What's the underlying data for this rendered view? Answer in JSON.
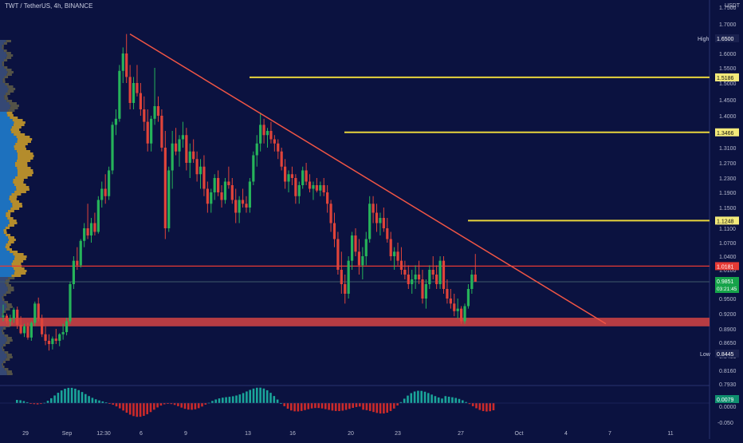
{
  "header": {
    "title": "TWT / TetherUS, 4h, BINANCE",
    "currency": "USDT"
  },
  "colors": {
    "background": "#0b1240",
    "up": "#26b35a",
    "down": "#e0443a",
    "trendline": "#f05545",
    "resistance": "#e8d43c",
    "support_zone": "#d54444",
    "red_line": "#e63a35",
    "price_badge": "#16a34a",
    "axis_text": "#b8bcd0",
    "label_bg": "#f3ea7a"
  },
  "chart_data": {
    "type": "candlestick",
    "y_axis": {
      "range": [
        0.82,
        1.73
      ],
      "ticks": [
        "1.7500",
        "1.7000",
        "1.6500",
        "1.6000",
        "1.5500",
        "1.5000",
        "1.4500",
        "1.4000",
        "1.3500",
        "1.3100",
        "1.2700",
        "1.2300",
        "1.1900",
        "1.1500",
        "1.1100",
        "1.0700",
        "1.0400",
        "1.0100",
        "0.9800",
        "0.9500",
        "0.9200",
        "0.8900",
        "0.8650",
        "0.8400",
        "0.8160",
        "0.7930"
      ],
      "scale": "log"
    },
    "x_axis": {
      "ticks": [
        "29",
        "Sep",
        "12:30",
        "6",
        "9",
        "13",
        "16",
        "20",
        "23",
        "27",
        "Oct",
        "4",
        "7",
        "11"
      ]
    },
    "price_labels": [
      {
        "tag": "High",
        "value": "1.6500"
      },
      {
        "tag": "",
        "value": "1.5186"
      },
      {
        "tag": "",
        "value": "1.3466"
      },
      {
        "tag": "",
        "value": "1.1248"
      },
      {
        "tag": "",
        "value": "1.0181"
      },
      {
        "tag": "",
        "value": "0.9851"
      },
      {
        "tag": "",
        "value": "03:21:45"
      },
      {
        "tag": "Low",
        "value": "0.8445"
      }
    ],
    "horizontal_levels": [
      {
        "value": 1.5186,
        "type": "resistance"
      },
      {
        "value": 1.3466,
        "type": "resistance"
      },
      {
        "value": 1.1248,
        "type": "resistance"
      },
      {
        "value": 1.0181,
        "type": "red-line"
      },
      {
        "value": 0.9851,
        "type": "current-price"
      }
    ],
    "support_zone": [
      0.895,
      0.912
    ],
    "trendline": {
      "from": 1.665,
      "to": 0.9
    },
    "indicator": {
      "label": "0.0079",
      "ticks": [
        "0.0000",
        "-0.050"
      ]
    },
    "candles": [
      [
        0.914,
        0.938,
        0.905,
        0.916
      ],
      [
        0.916,
        0.92,
        0.9,
        0.905
      ],
      [
        0.905,
        0.918,
        0.895,
        0.91
      ],
      [
        0.91,
        0.932,
        0.902,
        0.928
      ],
      [
        0.928,
        0.934,
        0.89,
        0.898
      ],
      [
        0.898,
        0.915,
        0.88,
        0.882
      ],
      [
        0.882,
        0.9,
        0.875,
        0.895
      ],
      [
        0.895,
        0.902,
        0.87,
        0.874
      ],
      [
        0.874,
        0.905,
        0.868,
        0.902
      ],
      [
        0.902,
        0.944,
        0.896,
        0.94
      ],
      [
        0.94,
        0.952,
        0.905,
        0.91
      ],
      [
        0.91,
        0.918,
        0.875,
        0.88
      ],
      [
        0.88,
        0.895,
        0.86,
        0.868
      ],
      [
        0.868,
        0.88,
        0.85,
        0.862
      ],
      [
        0.862,
        0.876,
        0.852,
        0.872
      ],
      [
        0.872,
        0.89,
        0.862,
        0.868
      ],
      [
        0.868,
        0.882,
        0.858,
        0.88
      ],
      [
        0.88,
        0.9,
        0.87,
        0.884
      ],
      [
        0.884,
        0.912,
        0.878,
        0.905
      ],
      [
        0.905,
        0.985,
        0.9,
        0.98
      ],
      [
        0.98,
        1.04,
        0.97,
        1.03
      ],
      [
        1.03,
        1.06,
        1.01,
        1.02
      ],
      [
        1.02,
        1.08,
        1.015,
        1.075
      ],
      [
        1.075,
        1.12,
        1.06,
        1.11
      ],
      [
        1.11,
        1.16,
        1.08,
        1.09
      ],
      [
        1.09,
        1.13,
        1.07,
        1.12
      ],
      [
        1.12,
        1.14,
        1.09,
        1.1
      ],
      [
        1.1,
        1.18,
        1.095,
        1.17
      ],
      [
        1.17,
        1.22,
        1.15,
        1.2
      ],
      [
        1.2,
        1.24,
        1.16,
        1.18
      ],
      [
        1.18,
        1.26,
        1.17,
        1.25
      ],
      [
        1.25,
        1.38,
        1.24,
        1.37
      ],
      [
        1.37,
        1.42,
        1.34,
        1.39
      ],
      [
        1.39,
        1.56,
        1.38,
        1.54
      ],
      [
        1.54,
        1.62,
        1.5,
        1.6
      ],
      [
        1.6,
        1.665,
        1.5,
        1.52
      ],
      [
        1.52,
        1.56,
        1.42,
        1.44
      ],
      [
        1.44,
        1.52,
        1.42,
        1.5
      ],
      [
        1.5,
        1.56,
        1.46,
        1.47
      ],
      [
        1.47,
        1.5,
        1.4,
        1.42
      ],
      [
        1.42,
        1.46,
        1.35,
        1.38
      ],
      [
        1.38,
        1.42,
        1.3,
        1.32
      ],
      [
        1.32,
        1.4,
        1.3,
        1.39
      ],
      [
        1.39,
        1.55,
        1.37,
        1.43
      ],
      [
        1.43,
        1.46,
        1.38,
        1.4
      ],
      [
        1.4,
        1.42,
        1.3,
        1.31
      ],
      [
        1.31,
        1.35,
        1.08,
        1.11
      ],
      [
        1.11,
        1.26,
        1.1,
        1.25
      ],
      [
        1.25,
        1.35,
        1.2,
        1.32
      ],
      [
        1.32,
        1.36,
        1.29,
        1.3
      ],
      [
        1.3,
        1.34,
        1.26,
        1.33
      ],
      [
        1.33,
        1.38,
        1.31,
        1.34
      ],
      [
        1.34,
        1.36,
        1.25,
        1.27
      ],
      [
        1.27,
        1.32,
        1.23,
        1.3
      ],
      [
        1.3,
        1.33,
        1.27,
        1.28
      ],
      [
        1.28,
        1.3,
        1.22,
        1.24
      ],
      [
        1.24,
        1.28,
        1.2,
        1.26
      ],
      [
        1.26,
        1.29,
        1.18,
        1.2
      ],
      [
        1.2,
        1.22,
        1.14,
        1.16
      ],
      [
        1.16,
        1.2,
        1.14,
        1.19
      ],
      [
        1.19,
        1.24,
        1.17,
        1.23
      ],
      [
        1.23,
        1.25,
        1.18,
        1.19
      ],
      [
        1.19,
        1.21,
        1.15,
        1.17
      ],
      [
        1.17,
        1.23,
        1.16,
        1.22
      ],
      [
        1.22,
        1.26,
        1.2,
        1.21
      ],
      [
        1.21,
        1.23,
        1.16,
        1.17
      ],
      [
        1.17,
        1.2,
        1.12,
        1.14
      ],
      [
        1.14,
        1.18,
        1.12,
        1.17
      ],
      [
        1.17,
        1.2,
        1.15,
        1.16
      ],
      [
        1.16,
        1.18,
        1.14,
        1.15
      ],
      [
        1.15,
        1.23,
        1.14,
        1.22
      ],
      [
        1.22,
        1.3,
        1.21,
        1.29
      ],
      [
        1.29,
        1.34,
        1.26,
        1.32
      ],
      [
        1.32,
        1.41,
        1.3,
        1.37
      ],
      [
        1.37,
        1.39,
        1.32,
        1.34
      ],
      [
        1.34,
        1.36,
        1.31,
        1.35
      ],
      [
        1.35,
        1.38,
        1.32,
        1.33
      ],
      [
        1.33,
        1.34,
        1.3,
        1.32
      ],
      [
        1.32,
        1.33,
        1.28,
        1.3
      ],
      [
        1.3,
        1.31,
        1.25,
        1.26
      ],
      [
        1.26,
        1.28,
        1.2,
        1.22
      ],
      [
        1.22,
        1.25,
        1.19,
        1.24
      ],
      [
        1.24,
        1.26,
        1.21,
        1.23
      ],
      [
        1.23,
        1.24,
        1.16,
        1.18
      ],
      [
        1.18,
        1.22,
        1.16,
        1.21
      ],
      [
        1.21,
        1.26,
        1.2,
        1.25
      ],
      [
        1.25,
        1.27,
        1.21,
        1.22
      ],
      [
        1.22,
        1.24,
        1.19,
        1.2
      ],
      [
        1.2,
        1.22,
        1.17,
        1.21
      ],
      [
        1.21,
        1.23,
        1.19,
        1.195
      ],
      [
        1.195,
        1.22,
        1.18,
        1.21
      ],
      [
        1.21,
        1.23,
        1.18,
        1.19
      ],
      [
        1.19,
        1.21,
        1.14,
        1.16
      ],
      [
        1.16,
        1.17,
        1.1,
        1.12
      ],
      [
        1.12,
        1.14,
        1.06,
        1.08
      ],
      [
        1.08,
        1.1,
        1.0,
        1.01
      ],
      [
        1.01,
        1.05,
        0.96,
        0.98
      ],
      [
        0.98,
        1.0,
        0.94,
        0.96
      ],
      [
        0.96,
        1.04,
        0.95,
        1.03
      ],
      [
        1.03,
        1.1,
        1.01,
        1.09
      ],
      [
        1.09,
        1.11,
        1.04,
        1.05
      ],
      [
        1.05,
        1.08,
        1.0,
        1.02
      ],
      [
        1.02,
        1.06,
        0.99,
        1.04
      ],
      [
        1.04,
        1.1,
        1.02,
        1.08
      ],
      [
        1.08,
        1.18,
        1.07,
        1.16
      ],
      [
        1.16,
        1.18,
        1.12,
        1.14
      ],
      [
        1.14,
        1.16,
        1.1,
        1.12
      ],
      [
        1.12,
        1.14,
        1.09,
        1.13
      ],
      [
        1.13,
        1.15,
        1.1,
        1.11
      ],
      [
        1.11,
        1.13,
        1.07,
        1.08
      ],
      [
        1.08,
        1.1,
        1.03,
        1.04
      ],
      [
        1.04,
        1.06,
        1.01,
        1.05
      ],
      [
        1.05,
        1.07,
        1.02,
        1.03
      ],
      [
        1.03,
        1.06,
        1.0,
        1.01
      ],
      [
        1.01,
        1.03,
        0.99,
        1.0
      ],
      [
        1.0,
        1.02,
        0.97,
        0.98
      ],
      [
        0.98,
        1.01,
        0.96,
        0.99
      ],
      [
        0.99,
        1.02,
        0.97,
        1.0
      ],
      [
        1.0,
        1.03,
        0.98,
        0.99
      ],
      [
        0.99,
        1.01,
        0.94,
        0.95
      ],
      [
        0.95,
        0.99,
        0.93,
        0.98
      ],
      [
        0.98,
        1.02,
        0.97,
        1.01
      ],
      [
        1.01,
        1.04,
        0.99,
        1.0
      ],
      [
        1.0,
        1.02,
        0.97,
        0.98
      ],
      [
        0.98,
        1.04,
        0.97,
        1.03
      ],
      [
        1.03,
        1.04,
        0.96,
        0.97
      ],
      [
        0.97,
        0.99,
        0.94,
        0.95
      ],
      [
        0.95,
        0.97,
        0.93,
        0.94
      ],
      [
        0.94,
        0.96,
        0.915,
        0.925
      ],
      [
        0.925,
        0.95,
        0.91,
        0.93
      ],
      [
        0.93,
        0.935,
        0.9,
        0.905
      ],
      [
        0.905,
        0.94,
        0.9,
        0.935
      ],
      [
        0.935,
        0.98,
        0.93,
        0.97
      ],
      [
        0.97,
        1.01,
        0.96,
        1.0
      ],
      [
        1.0,
        1.045,
        0.99,
        0.985
      ]
    ]
  }
}
